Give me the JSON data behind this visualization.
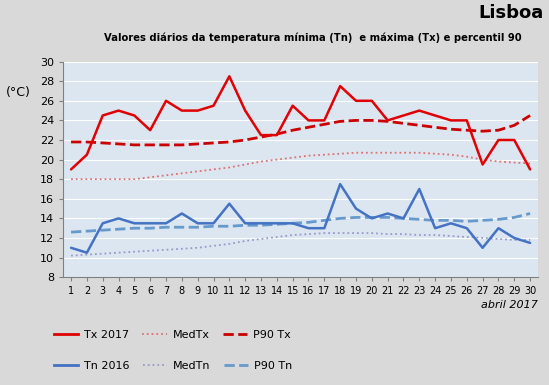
{
  "days": [
    1,
    2,
    3,
    4,
    5,
    6,
    7,
    8,
    9,
    10,
    11,
    12,
    13,
    14,
    15,
    16,
    17,
    18,
    19,
    20,
    21,
    22,
    23,
    24,
    25,
    26,
    27,
    28,
    29,
    30
  ],
  "Tx2017": [
    19,
    20.5,
    24.5,
    25,
    24.5,
    23,
    26,
    25,
    25,
    25.5,
    28.5,
    25,
    22.5,
    22.5,
    25.5,
    24,
    24,
    27.5,
    26,
    26,
    24,
    24.5,
    25,
    24.5,
    24,
    24,
    19.5,
    22,
    22,
    19
  ],
  "MedTx": [
    18,
    18,
    18,
    18,
    18,
    18.2,
    18.4,
    18.6,
    18.8,
    19.0,
    19.2,
    19.5,
    19.8,
    20.0,
    20.2,
    20.4,
    20.5,
    20.6,
    20.7,
    20.7,
    20.7,
    20.7,
    20.7,
    20.6,
    20.5,
    20.3,
    20.0,
    19.8,
    19.7,
    19.6
  ],
  "P90Tx": [
    21.8,
    21.8,
    21.7,
    21.6,
    21.5,
    21.5,
    21.5,
    21.5,
    21.6,
    21.7,
    21.8,
    22.0,
    22.3,
    22.6,
    23.0,
    23.3,
    23.6,
    23.9,
    24.0,
    24.0,
    23.9,
    23.7,
    23.5,
    23.3,
    23.1,
    23.0,
    22.9,
    23.0,
    23.5,
    24.5
  ],
  "Tn2016": [
    11,
    10.5,
    13.5,
    14,
    13.5,
    13.5,
    13.5,
    14.5,
    13.5,
    13.5,
    15.5,
    13.5,
    13.5,
    13.5,
    13.5,
    13,
    13,
    17.5,
    15,
    14,
    14.5,
    14,
    17,
    13,
    13.5,
    13,
    11,
    13,
    12,
    11.5
  ],
  "MedTn": [
    10.2,
    10.3,
    10.4,
    10.5,
    10.6,
    10.7,
    10.8,
    10.9,
    11.0,
    11.2,
    11.4,
    11.7,
    11.9,
    12.1,
    12.3,
    12.4,
    12.5,
    12.5,
    12.5,
    12.5,
    12.4,
    12.4,
    12.3,
    12.3,
    12.2,
    12.1,
    12.0,
    11.9,
    11.8,
    11.8
  ],
  "P90Tn": [
    12.6,
    12.7,
    12.8,
    12.9,
    13.0,
    13.0,
    13.1,
    13.1,
    13.1,
    13.2,
    13.2,
    13.3,
    13.3,
    13.4,
    13.5,
    13.6,
    13.8,
    14.0,
    14.1,
    14.1,
    14.1,
    14.0,
    13.9,
    13.8,
    13.8,
    13.7,
    13.8,
    13.9,
    14.1,
    14.5
  ],
  "title_city": "Lisboa",
  "subtitle": "Valores diários da temperatura mínima (Tn)  e máxima (Tx) e percentil 90",
  "xlabel": "abril 2017",
  "ylabel": "(°C)",
  "ylim": [
    8,
    30
  ],
  "yticks": [
    8,
    10,
    12,
    14,
    16,
    18,
    20,
    22,
    24,
    26,
    28,
    30
  ],
  "color_red": "#e00000",
  "color_red_dotted": "#e07070",
  "color_red_dashed": "#cc0000",
  "color_blue": "#4472c4",
  "color_blue_dotted": "#9999cc",
  "color_blue_dashed": "#6699cc",
  "bg_plot": "#dce6f1",
  "bg_fig": "#d9d9d9",
  "legend_labels": [
    "Tx 2017",
    "MedTx",
    "P90 Tx",
    "Tn 2016",
    "MedTn",
    "P90 Tn"
  ]
}
